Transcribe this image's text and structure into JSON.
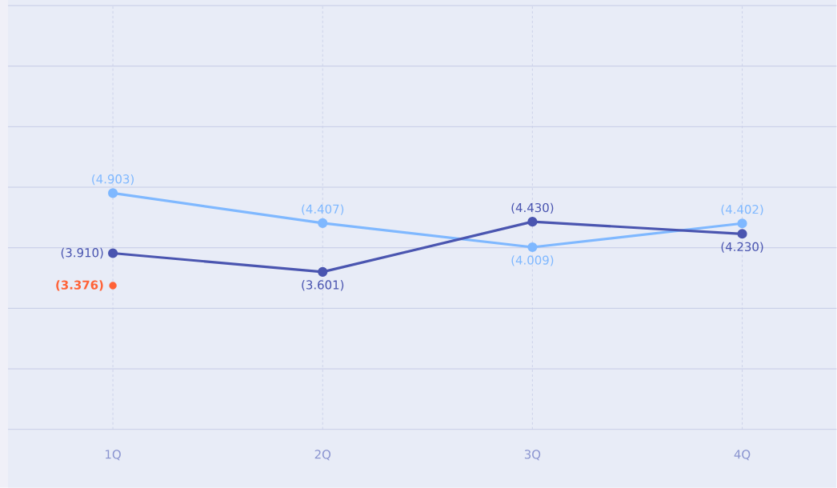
{
  "chart_data": {
    "type": "line",
    "categories": [
      "1Q",
      "2Q",
      "3Q",
      "4Q"
    ],
    "ylim": [
      1,
      8
    ],
    "yticks": [
      {
        "value": 1,
        "label": null
      },
      {
        "value": 2,
        "label": null
      },
      {
        "value": 3,
        "label": null
      },
      {
        "value": 4,
        "label": null
      },
      {
        "value": 5,
        "label": null
      },
      {
        "value": 6,
        "label": null
      },
      {
        "value": 7,
        "label": null
      },
      {
        "value": 8,
        "label": null
      }
    ],
    "tick_labels": "x",
    "grid": true,
    "marker": "circle",
    "line_style": "solid",
    "series": [
      {
        "color": "#7fb8ff",
        "values": [
          4.903,
          4.407,
          4.009,
          4.402
        ],
        "value_labels": [
          "(4.903)",
          "(4.407)",
          "(4.009)",
          "(4.402)"
        ]
      },
      {
        "color": "#4a55b0",
        "values": [
          3.91,
          3.601,
          4.43,
          4.23
        ],
        "value_labels": [
          "(3.910)",
          "(3.601)",
          "(4.430)",
          "(4.230)"
        ]
      },
      {
        "type": "scatter",
        "color": "#ff6237",
        "values": [
          3.376,
          null,
          null,
          null
        ],
        "value_labels": [
          "(3.376)",
          null,
          null,
          null
        ]
      }
    ]
  }
}
